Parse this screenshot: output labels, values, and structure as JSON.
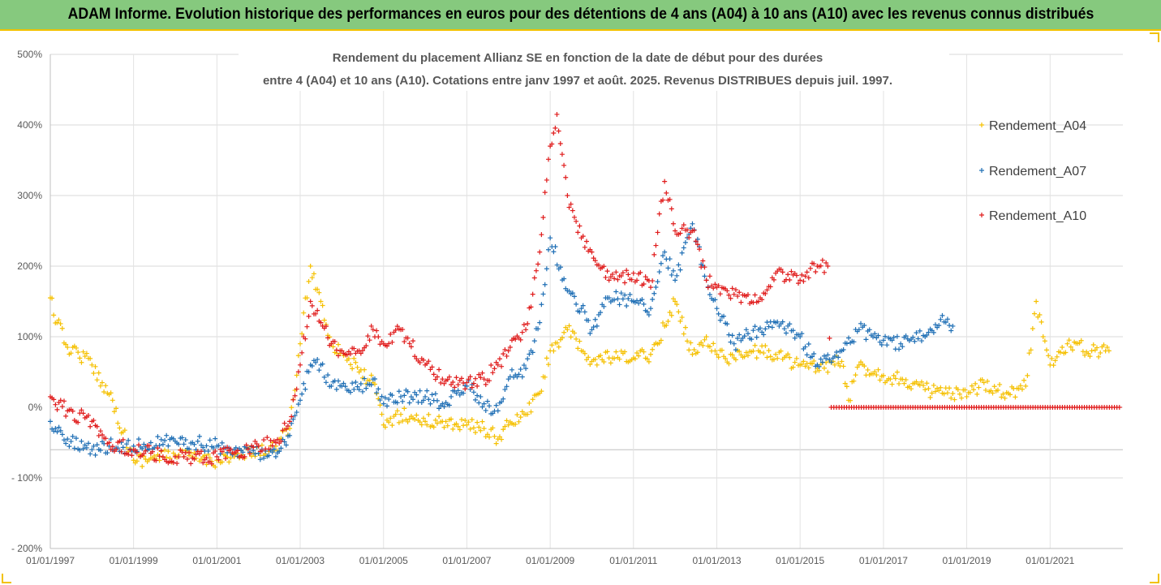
{
  "banner": {
    "title": "ADAM Informe. Evolution historique des performances en euros pour des détentions de 4 ans (A04) à 10 ans (A10) avec les revenus connus distribués"
  },
  "colors": {
    "banner_bg": "#86c97e",
    "banner_border": "#f2c200",
    "A04": "#f5c000",
    "A07": "#1f6fb5",
    "A10": "#e01b1b"
  },
  "chart_data": {
    "type": "scatter",
    "title_line1": "Rendement du placement Allianz SE en fonction de la date de début pour des durées",
    "title_line2": "entre 4 (A04) et 10 ans (A10). Cotations entre janv 1997 et août. 2025. Revenus DISTRIBUES depuis juil. 1997.",
    "x_axis": {
      "type": "date",
      "min": "1997-01-01",
      "max": "2022-10-01",
      "tick_labels": [
        "01/01/1997",
        "01/01/1999",
        "01/01/2001",
        "01/01/2003",
        "01/01/2005",
        "01/01/2007",
        "01/01/2009",
        "01/01/2011",
        "01/01/2013",
        "01/01/2015",
        "01/01/2017",
        "01/01/2019",
        "01/01/2021"
      ]
    },
    "y_axis": {
      "min": -200,
      "max": 500,
      "unit": "%",
      "tick_values": [
        500,
        400,
        300,
        200,
        100,
        0,
        -100,
        -200
      ],
      "tick_labels": [
        "500%",
        "400%",
        "300%",
        "200%",
        "100%",
        "0%",
        "- 100%",
        "- 200%"
      ]
    },
    "grid": "horizontal",
    "legend_position": "right",
    "series": [
      {
        "name": "Rendement_A04",
        "color": "#f5c000",
        "points": [
          [
            "1997-01-01",
            155
          ],
          [
            "1997-03-01",
            120
          ],
          [
            "1997-06-01",
            85
          ],
          [
            "1997-09-01",
            78
          ],
          [
            "1998-01-01",
            60
          ],
          [
            "1998-04-01",
            35
          ],
          [
            "1998-07-01",
            10
          ],
          [
            "1998-10-01",
            -35
          ],
          [
            "1999-01-01",
            -75
          ],
          [
            "1999-06-01",
            -72
          ],
          [
            "2000-01-01",
            -68
          ],
          [
            "2000-06-01",
            -70
          ],
          [
            "2001-01-01",
            -75
          ],
          [
            "2001-06-01",
            -70
          ],
          [
            "2002-01-01",
            -65
          ],
          [
            "2002-06-01",
            -55
          ],
          [
            "2002-10-01",
            -30
          ],
          [
            "2003-01-01",
            90
          ],
          [
            "2003-04-01",
            200
          ],
          [
            "2003-07-01",
            150
          ],
          [
            "2003-10-01",
            90
          ],
          [
            "2004-01-01",
            80
          ],
          [
            "2004-06-01",
            50
          ],
          [
            "2004-10-01",
            35
          ],
          [
            "2005-01-01",
            -25
          ],
          [
            "2005-06-01",
            -10
          ],
          [
            "2006-01-01",
            -20
          ],
          [
            "2006-06-01",
            -20
          ],
          [
            "2007-01-01",
            -25
          ],
          [
            "2007-06-01",
            -30
          ],
          [
            "2007-10-01",
            -45
          ],
          [
            "2008-01-01",
            -25
          ],
          [
            "2008-06-01",
            -10
          ],
          [
            "2008-10-01",
            20
          ],
          [
            "2009-01-01",
            80
          ],
          [
            "2009-06-01",
            110
          ],
          [
            "2009-10-01",
            80
          ],
          [
            "2010-01-01",
            65
          ],
          [
            "2010-06-01",
            70
          ],
          [
            "2011-01-01",
            70
          ],
          [
            "2011-06-01",
            75
          ],
          [
            "2011-10-01",
            115
          ],
          [
            "2012-01-01",
            150
          ],
          [
            "2012-06-01",
            75
          ],
          [
            "2012-10-01",
            100
          ],
          [
            "2013-01-01",
            75
          ],
          [
            "2013-06-01",
            70
          ],
          [
            "2014-01-01",
            80
          ],
          [
            "2014-06-01",
            75
          ],
          [
            "2015-01-01",
            60
          ],
          [
            "2015-06-01",
            55
          ],
          [
            "2016-01-01",
            65
          ],
          [
            "2016-03-01",
            10
          ],
          [
            "2016-06-01",
            60
          ],
          [
            "2017-01-01",
            45
          ],
          [
            "2017-06-01",
            40
          ],
          [
            "2018-01-01",
            25
          ],
          [
            "2018-06-01",
            20
          ],
          [
            "2019-01-01",
            15
          ],
          [
            "2019-06-01",
            35
          ],
          [
            "2020-01-01",
            20
          ],
          [
            "2020-06-01",
            30
          ],
          [
            "2020-09-01",
            150
          ],
          [
            "2020-11-01",
            100
          ],
          [
            "2021-01-01",
            60
          ],
          [
            "2021-06-01",
            90
          ],
          [
            "2022-01-01",
            80
          ],
          [
            "2022-06-01",
            80
          ]
        ]
      },
      {
        "name": "Rendement_A07",
        "color": "#1f6fb5",
        "points": [
          [
            "1997-01-01",
            -20
          ],
          [
            "1997-06-01",
            -45
          ],
          [
            "1998-01-01",
            -60
          ],
          [
            "1998-06-01",
            -55
          ],
          [
            "1999-01-01",
            -55
          ],
          [
            "1999-06-01",
            -50
          ],
          [
            "2000-01-01",
            -48
          ],
          [
            "2000-06-01",
            -50
          ],
          [
            "2001-01-01",
            -55
          ],
          [
            "2001-06-01",
            -60
          ],
          [
            "2002-01-01",
            -65
          ],
          [
            "2002-06-01",
            -70
          ],
          [
            "2002-10-01",
            -40
          ],
          [
            "2003-01-01",
            10
          ],
          [
            "2003-04-01",
            60
          ],
          [
            "2003-07-01",
            60
          ],
          [
            "2003-10-01",
            30
          ],
          [
            "2004-01-01",
            30
          ],
          [
            "2004-06-01",
            25
          ],
          [
            "2004-10-01",
            40
          ],
          [
            "2005-01-01",
            5
          ],
          [
            "2005-06-01",
            15
          ],
          [
            "2006-01-01",
            15
          ],
          [
            "2006-06-01",
            5
          ],
          [
            "2007-01-01",
            30
          ],
          [
            "2007-06-01",
            5
          ],
          [
            "2007-10-01",
            -5
          ],
          [
            "2008-01-01",
            40
          ],
          [
            "2008-06-01",
            55
          ],
          [
            "2008-10-01",
            120
          ],
          [
            "2009-01-01",
            240
          ],
          [
            "2009-06-01",
            165
          ],
          [
            "2009-10-01",
            140
          ],
          [
            "2010-01-01",
            110
          ],
          [
            "2010-06-01",
            155
          ],
          [
            "2011-01-01",
            150
          ],
          [
            "2011-06-01",
            140
          ],
          [
            "2011-10-01",
            220
          ],
          [
            "2012-01-01",
            180
          ],
          [
            "2012-06-01",
            260
          ],
          [
            "2012-10-01",
            180
          ],
          [
            "2013-01-01",
            140
          ],
          [
            "2013-06-01",
            90
          ],
          [
            "2014-01-01",
            110
          ],
          [
            "2014-06-01",
            120
          ],
          [
            "2015-01-01",
            100
          ],
          [
            "2015-06-01",
            60
          ],
          [
            "2016-01-01",
            80
          ],
          [
            "2016-06-01",
            110
          ],
          [
            "2017-01-01",
            95
          ],
          [
            "2017-06-01",
            90
          ],
          [
            "2018-01-01",
            100
          ],
          [
            "2018-06-01",
            130
          ],
          [
            "2018-09-01",
            115
          ]
        ]
      },
      {
        "name": "Rendement_A10",
        "color": "#e01b1b",
        "points": [
          [
            "1997-01-01",
            15
          ],
          [
            "1997-06-01",
            -5
          ],
          [
            "1998-01-01",
            -20
          ],
          [
            "1998-06-01",
            -50
          ],
          [
            "1999-01-01",
            -60
          ],
          [
            "1999-06-01",
            -65
          ],
          [
            "2000-01-01",
            -70
          ],
          [
            "2000-06-01",
            -72
          ],
          [
            "2001-01-01",
            -70
          ],
          [
            "2001-06-01",
            -65
          ],
          [
            "2002-01-01",
            -55
          ],
          [
            "2002-06-01",
            -50
          ],
          [
            "2002-10-01",
            -20
          ],
          [
            "2003-01-01",
            60
          ],
          [
            "2003-04-01",
            150
          ],
          [
            "2003-07-01",
            120
          ],
          [
            "2003-10-01",
            90
          ],
          [
            "2004-01-01",
            80
          ],
          [
            "2004-06-01",
            80
          ],
          [
            "2004-10-01",
            110
          ],
          [
            "2005-01-01",
            90
          ],
          [
            "2005-06-01",
            110
          ],
          [
            "2006-01-01",
            60
          ],
          [
            "2006-06-01",
            40
          ],
          [
            "2007-01-01",
            35
          ],
          [
            "2007-06-01",
            40
          ],
          [
            "2007-10-01",
            60
          ],
          [
            "2008-01-01",
            80
          ],
          [
            "2008-06-01",
            110
          ],
          [
            "2008-10-01",
            220
          ],
          [
            "2009-01-01",
            370
          ],
          [
            "2009-03-01",
            415
          ],
          [
            "2009-06-01",
            300
          ],
          [
            "2009-10-01",
            240
          ],
          [
            "2010-01-01",
            220
          ],
          [
            "2010-06-01",
            180
          ],
          [
            "2011-01-01",
            190
          ],
          [
            "2011-06-01",
            170
          ],
          [
            "2011-10-01",
            320
          ],
          [
            "2012-01-01",
            250
          ],
          [
            "2012-06-01",
            250
          ],
          [
            "2012-10-01",
            180
          ],
          [
            "2013-01-01",
            170
          ],
          [
            "2013-06-01",
            160
          ],
          [
            "2014-01-01",
            150
          ],
          [
            "2014-06-01",
            190
          ],
          [
            "2015-01-01",
            180
          ],
          [
            "2015-06-01",
            200
          ],
          [
            "2015-09-01",
            200
          ],
          [
            "2015-10-01",
            0
          ],
          [
            "2016-01-01",
            0
          ],
          [
            "2017-01-01",
            0
          ],
          [
            "2018-01-01",
            0
          ],
          [
            "2019-01-01",
            0
          ],
          [
            "2020-01-01",
            0
          ],
          [
            "2021-01-01",
            0
          ],
          [
            "2022-01-01",
            0
          ],
          [
            "2022-09-01",
            0
          ]
        ]
      }
    ]
  }
}
